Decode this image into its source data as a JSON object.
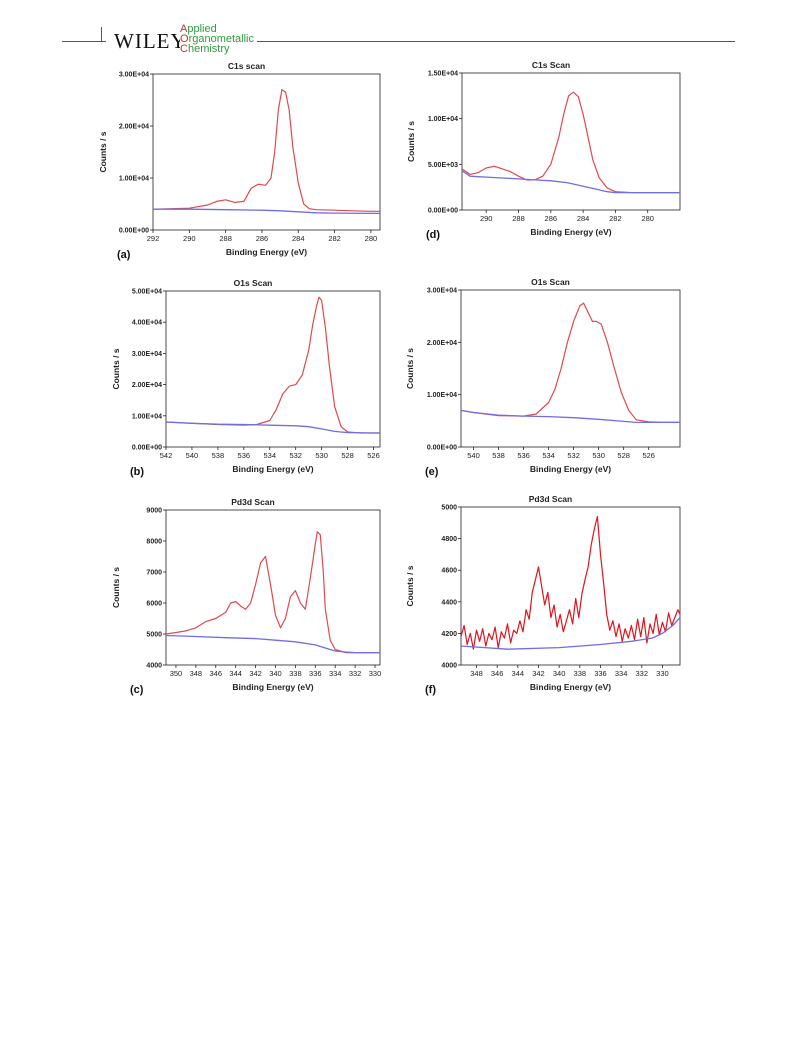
{
  "header": {
    "publisher": "WILEY",
    "journal_lines": [
      {
        "initial": "A",
        "rest": "pplied"
      },
      {
        "initial": "O",
        "rest": "rganometallic"
      },
      {
        "initial": "C",
        "rest": "hemistry"
      }
    ]
  },
  "colors": {
    "signal": "#e0494f",
    "signal_noisy": "#e0141c",
    "background_fit": "#6e6ee6",
    "journal_green": "#2e9a3f",
    "journal_red": "#d92b2b"
  },
  "chart_data": [
    {
      "panel": "(a)",
      "type": "line",
      "title": "C1s scan",
      "xlabel": "Binding Energy (eV)",
      "ylabel": "Counts / s",
      "xlim": [
        292,
        279.5
      ],
      "ylim": [
        0,
        30000
      ],
      "xticks": [
        292,
        290,
        288,
        286,
        284,
        282,
        280
      ],
      "xtick_labels": [
        "292",
        "290",
        "288",
        "286",
        "284",
        "282",
        "280"
      ],
      "yticks": [
        0,
        10000,
        20000,
        30000
      ],
      "ytick_labels": [
        "0.00E+00",
        "1.00E+04",
        "2.00E+04",
        "3.00E+04"
      ],
      "series": [
        {
          "role": "signal",
          "x": [
            292,
            291,
            290,
            289,
            288.5,
            288,
            287.5,
            287,
            286.6,
            286.2,
            285.8,
            285.5,
            285.3,
            285.1,
            284.9,
            284.7,
            284.5,
            284.3,
            284,
            283.7,
            283.4,
            283,
            282,
            281,
            280,
            279.5
          ],
          "y": [
            4000,
            4100,
            4200,
            4800,
            5500,
            5800,
            5300,
            5500,
            8000,
            8800,
            8600,
            10000,
            15000,
            23000,
            27000,
            26500,
            23000,
            16000,
            9000,
            5000,
            4100,
            3900,
            3800,
            3700,
            3600,
            3600
          ]
        },
        {
          "role": "background",
          "x": [
            292,
            290,
            288,
            286,
            285,
            284,
            283,
            282,
            280,
            279.5
          ],
          "y": [
            4000,
            4000,
            3900,
            3800,
            3700,
            3500,
            3300,
            3250,
            3200,
            3200
          ]
        }
      ]
    },
    {
      "panel": "(d)",
      "type": "line",
      "title": "C1s Scan",
      "xlabel": "Binding Energy (eV)",
      "ylabel": "Counts / s",
      "xlim": [
        291.5,
        278
      ],
      "ylim": [
        0,
        15000
      ],
      "xticks": [
        290,
        288,
        286,
        284,
        282,
        280
      ],
      "xtick_labels": [
        "290",
        "288",
        "286",
        "284",
        "282",
        "280"
      ],
      "yticks": [
        0,
        5000,
        10000,
        15000
      ],
      "ytick_labels": [
        "0.00E+00",
        "5.00E+03",
        "1.00E+04",
        "1.50E+04"
      ],
      "series": [
        {
          "role": "signal",
          "x": [
            291.5,
            291,
            290.5,
            290,
            289.5,
            289,
            288.5,
            288,
            287.5,
            287,
            286.5,
            286,
            285.5,
            285.2,
            284.9,
            284.6,
            284.3,
            284,
            283.7,
            283.4,
            283,
            282.5,
            282,
            281,
            280,
            279,
            278
          ],
          "y": [
            4500,
            3900,
            4100,
            4600,
            4800,
            4500,
            4200,
            3700,
            3300,
            3300,
            3700,
            5000,
            8000,
            10500,
            12500,
            12900,
            12400,
            10500,
            8000,
            5500,
            3500,
            2400,
            2000,
            1900,
            1900,
            1900,
            1900
          ]
        },
        {
          "role": "background",
          "x": [
            291.5,
            291,
            290,
            289,
            288,
            287,
            286,
            285,
            284,
            283,
            282.5,
            282,
            281,
            280,
            279,
            278
          ],
          "y": [
            4300,
            3700,
            3600,
            3500,
            3400,
            3300,
            3200,
            3000,
            2600,
            2200,
            2000,
            1900,
            1900,
            1900,
            1900,
            1900
          ]
        }
      ]
    },
    {
      "panel": "(b)",
      "type": "line",
      "title": "O1s Scan",
      "xlabel": "Binding Energy (eV)",
      "ylabel": "Counts / s",
      "xlim": [
        542,
        525.5
      ],
      "ylim": [
        0,
        50000
      ],
      "xticks": [
        542,
        540,
        538,
        536,
        534,
        532,
        530,
        528,
        526
      ],
      "xtick_labels": [
        "542",
        "540",
        "538",
        "536",
        "534",
        "532",
        "530",
        "528",
        "526"
      ],
      "yticks": [
        0,
        10000,
        20000,
        30000,
        40000,
        50000
      ],
      "ytick_labels": [
        "0.00E+00",
        "1.00E+04",
        "2.00E+04",
        "3.00E+04",
        "4.00E+04",
        "5.00E+04"
      ],
      "series": [
        {
          "role": "signal",
          "x": [
            542,
            540,
            538,
            536,
            535,
            534,
            533.5,
            533,
            532.5,
            532,
            531.5,
            531,
            530.7,
            530.4,
            530.2,
            530,
            529.7,
            529.4,
            529,
            528.5,
            528,
            527,
            526,
            525.5
          ],
          "y": [
            8000,
            7600,
            7200,
            7000,
            7200,
            8500,
            12000,
            17000,
            19500,
            20000,
            23000,
            31000,
            39000,
            45000,
            48000,
            47000,
            38000,
            26000,
            13000,
            6500,
            4800,
            4500,
            4500,
            4500
          ]
        },
        {
          "role": "background",
          "x": [
            542,
            540,
            538,
            536,
            534,
            532,
            531,
            530,
            529,
            528,
            526,
            525.5
          ],
          "y": [
            8000,
            7600,
            7300,
            7200,
            7000,
            6800,
            6500,
            5800,
            5000,
            4600,
            4500,
            4500
          ]
        }
      ]
    },
    {
      "panel": "(e)",
      "type": "line",
      "title": "O1s Scan",
      "xlabel": "Binding Energy (eV)",
      "ylabel": "Counts / s",
      "xlim": [
        541,
        523.5
      ],
      "ylim": [
        0,
        30000
      ],
      "xticks": [
        540,
        538,
        536,
        534,
        532,
        530,
        528,
        526
      ],
      "xtick_labels": [
        "540",
        "538",
        "536",
        "534",
        "532",
        "530",
        "528",
        "526"
      ],
      "yticks": [
        0,
        10000,
        20000,
        30000
      ],
      "ytick_labels": [
        "0.00E+00",
        "1.00E+04",
        "2.00E+04",
        "3.00E+04"
      ],
      "series": [
        {
          "role": "signal",
          "x": [
            541,
            540,
            538,
            536,
            535,
            534,
            533.5,
            533,
            532.5,
            532,
            531.5,
            531.2,
            530.9,
            530.5,
            530.2,
            529.8,
            529.3,
            528.8,
            528.2,
            527.6,
            527,
            526,
            525,
            524,
            523.5
          ],
          "y": [
            7000,
            6600,
            6000,
            5900,
            6300,
            8500,
            11000,
            15000,
            20000,
            24000,
            27000,
            27500,
            26000,
            24000,
            24000,
            23500,
            20000,
            15500,
            10500,
            7000,
            5200,
            4800,
            4700,
            4700,
            4700
          ]
        },
        {
          "role": "background",
          "x": [
            541,
            540,
            538,
            536,
            534,
            532,
            530,
            528,
            527,
            526,
            524,
            523.5
          ],
          "y": [
            7000,
            6600,
            6100,
            5900,
            5800,
            5600,
            5300,
            4900,
            4700,
            4700,
            4700,
            4700
          ]
        }
      ]
    },
    {
      "panel": "(c)",
      "type": "line",
      "title": "Pd3d Scan",
      "xlabel": "Binding Energy (eV)",
      "ylabel": "Counts / s",
      "xlim": [
        351,
        329.5
      ],
      "ylim": [
        4000,
        9000
      ],
      "xticks": [
        350,
        348,
        346,
        344,
        342,
        340,
        338,
        336,
        334,
        332,
        330
      ],
      "xtick_labels": [
        "350",
        "348",
        "346",
        "344",
        "342",
        "340",
        "338",
        "336",
        "334",
        "332",
        "330"
      ],
      "yticks": [
        4000,
        5000,
        6000,
        7000,
        8000,
        9000
      ],
      "ytick_labels": [
        "4000",
        "5000",
        "6000",
        "7000",
        "8000",
        "9000"
      ],
      "series": [
        {
          "role": "signal",
          "x": [
            351,
            350,
            349,
            348,
            347,
            346,
            345,
            344.5,
            344,
            343.5,
            343,
            342.5,
            342,
            341.5,
            341,
            340.5,
            340,
            339.5,
            339,
            338.5,
            338,
            337.5,
            337,
            336.5,
            336,
            335.8,
            335.5,
            335.2,
            335,
            334.5,
            334,
            333.5,
            333,
            332,
            331,
            330,
            329.5
          ],
          "y": [
            5000,
            5050,
            5100,
            5200,
            5400,
            5500,
            5700,
            6000,
            6050,
            5900,
            5800,
            6000,
            6600,
            7300,
            7500,
            6600,
            5600,
            5200,
            5500,
            6200,
            6400,
            6000,
            5800,
            6800,
            7900,
            8300,
            8200,
            7000,
            5800,
            4800,
            4500,
            4450,
            4400,
            4400,
            4400,
            4400,
            4400
          ]
        },
        {
          "role": "background",
          "x": [
            351,
            348,
            345,
            342,
            340,
            338,
            336,
            335,
            334,
            333,
            332,
            330,
            329.5
          ],
          "y": [
            4950,
            4920,
            4880,
            4850,
            4800,
            4750,
            4650,
            4550,
            4450,
            4420,
            4400,
            4400,
            4400
          ]
        }
      ]
    },
    {
      "panel": "(f)",
      "type": "line",
      "title": "Pd3d Scan",
      "xlabel": "Binding Energy (eV)",
      "ylabel": "Counts / s",
      "xlim": [
        349.5,
        328.3
      ],
      "ylim": [
        4000,
        5000
      ],
      "xticks": [
        348,
        346,
        344,
        342,
        340,
        338,
        336,
        334,
        332,
        330
      ],
      "xtick_labels": [
        "348",
        "346",
        "344",
        "342",
        "340",
        "338",
        "336",
        "334",
        "332",
        "330"
      ],
      "yticks": [
        4000,
        4200,
        4400,
        4600,
        4800,
        5000
      ],
      "ytick_labels": [
        "4000",
        "4200",
        "4400",
        "4600",
        "4800",
        "5000"
      ],
      "series": [
        {
          "role": "signal",
          "x": [
            349.5,
            349.2,
            348.9,
            348.6,
            348.3,
            348,
            347.7,
            347.4,
            347.1,
            346.8,
            346.5,
            346.2,
            345.9,
            345.6,
            345.3,
            345,
            344.7,
            344.4,
            344.1,
            343.8,
            343.5,
            343.2,
            342.9,
            342.6,
            342.3,
            342,
            341.7,
            341.4,
            341.1,
            340.8,
            340.5,
            340.2,
            339.9,
            339.6,
            339.3,
            339,
            338.7,
            338.4,
            338.1,
            337.8,
            337.5,
            337.2,
            336.9,
            336.6,
            336.3,
            336,
            335.7,
            335.4,
            335.1,
            334.8,
            334.5,
            334.2,
            333.9,
            333.6,
            333.3,
            333,
            332.7,
            332.4,
            332.1,
            331.8,
            331.5,
            331.2,
            330.9,
            330.6,
            330.3,
            330,
            329.7,
            329.4,
            329.1,
            328.8,
            328.5,
            328.3
          ],
          "y": [
            4180,
            4250,
            4130,
            4200,
            4100,
            4220,
            4150,
            4230,
            4120,
            4200,
            4160,
            4240,
            4110,
            4210,
            4170,
            4260,
            4140,
            4220,
            4200,
            4280,
            4210,
            4350,
            4290,
            4460,
            4540,
            4620,
            4500,
            4380,
            4460,
            4300,
            4380,
            4240,
            4320,
            4210,
            4280,
            4350,
            4260,
            4420,
            4300,
            4450,
            4540,
            4620,
            4760,
            4860,
            4940,
            4700,
            4520,
            4320,
            4220,
            4280,
            4180,
            4260,
            4150,
            4230,
            4170,
            4250,
            4160,
            4290,
            4180,
            4300,
            4140,
            4260,
            4200,
            4320,
            4190,
            4270,
            4210,
            4330,
            4250,
            4300,
            4350,
            4320
          ]
        },
        {
          "role": "background",
          "x": [
            349.5,
            345,
            340,
            336,
            333,
            331,
            330,
            329,
            328.3
          ],
          "y": [
            4120,
            4100,
            4110,
            4130,
            4150,
            4170,
            4200,
            4250,
            4300
          ]
        }
      ]
    }
  ]
}
